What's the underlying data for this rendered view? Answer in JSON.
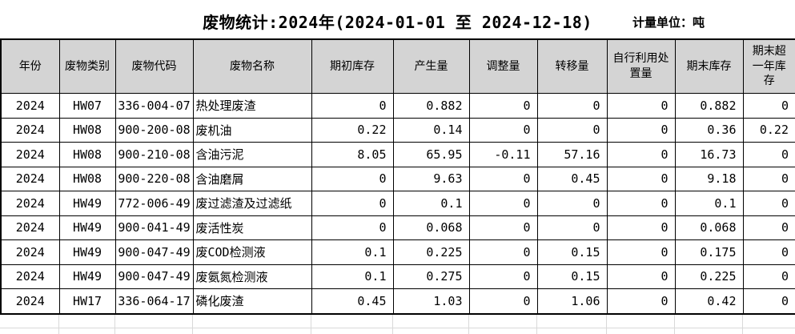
{
  "title": {
    "main": "废物统计:2024年(2024-01-01 至 2024-12-18)",
    "unit_label": "计量单位：吨"
  },
  "table": {
    "headers": [
      "年份",
      "废物类别",
      "废物代码",
      "废物名称",
      "期初库存",
      "产生量",
      "调整量",
      "转移量",
      "自行利用处置量",
      "期末库存",
      "期末超一年库存"
    ],
    "rows": [
      [
        "2024",
        "HW07",
        "336-004-07",
        "热处理废渣",
        "0",
        "0.882",
        "0",
        "0",
        "0",
        "0.882",
        "0"
      ],
      [
        "2024",
        "HW08",
        "900-200-08",
        "废机油",
        "0.22",
        "0.14",
        "0",
        "0",
        "0",
        "0.36",
        "0.22"
      ],
      [
        "2024",
        "HW08",
        "900-210-08",
        "含油污泥",
        "8.05",
        "65.95",
        "-0.11",
        "57.16",
        "0",
        "16.73",
        "0"
      ],
      [
        "2024",
        "HW08",
        "900-220-08",
        "含油磨屑",
        "0",
        "9.63",
        "0",
        "0.45",
        "0",
        "9.18",
        "0"
      ],
      [
        "2024",
        "HW49",
        "772-006-49",
        "废过滤渣及过滤纸",
        "0",
        "0.1",
        "0",
        "0",
        "0",
        "0.1",
        "0"
      ],
      [
        "2024",
        "HW49",
        "900-041-49",
        "废活性炭",
        "0",
        "0.068",
        "0",
        "0",
        "0",
        "0.068",
        "0"
      ],
      [
        "2024",
        "HW49",
        "900-047-49",
        "废COD检测液",
        "0.1",
        "0.225",
        "0",
        "0.15",
        "0",
        "0.175",
        "0"
      ],
      [
        "2024",
        "HW49",
        "900-047-49",
        "废氨氮检测液",
        "0.1",
        "0.275",
        "0",
        "0.15",
        "0",
        "0.225",
        "0"
      ],
      [
        "2024",
        "HW17",
        "336-064-17",
        "磷化废渣",
        "0.45",
        "1.03",
        "0",
        "1.06",
        "0",
        "0.42",
        "0"
      ]
    ]
  },
  "colors": {
    "header_bg": "#d4d4d4",
    "table_border": "#000000",
    "ghost_grid": "#d9d9d9",
    "text": "#000000",
    "background": "#ffffff"
  }
}
